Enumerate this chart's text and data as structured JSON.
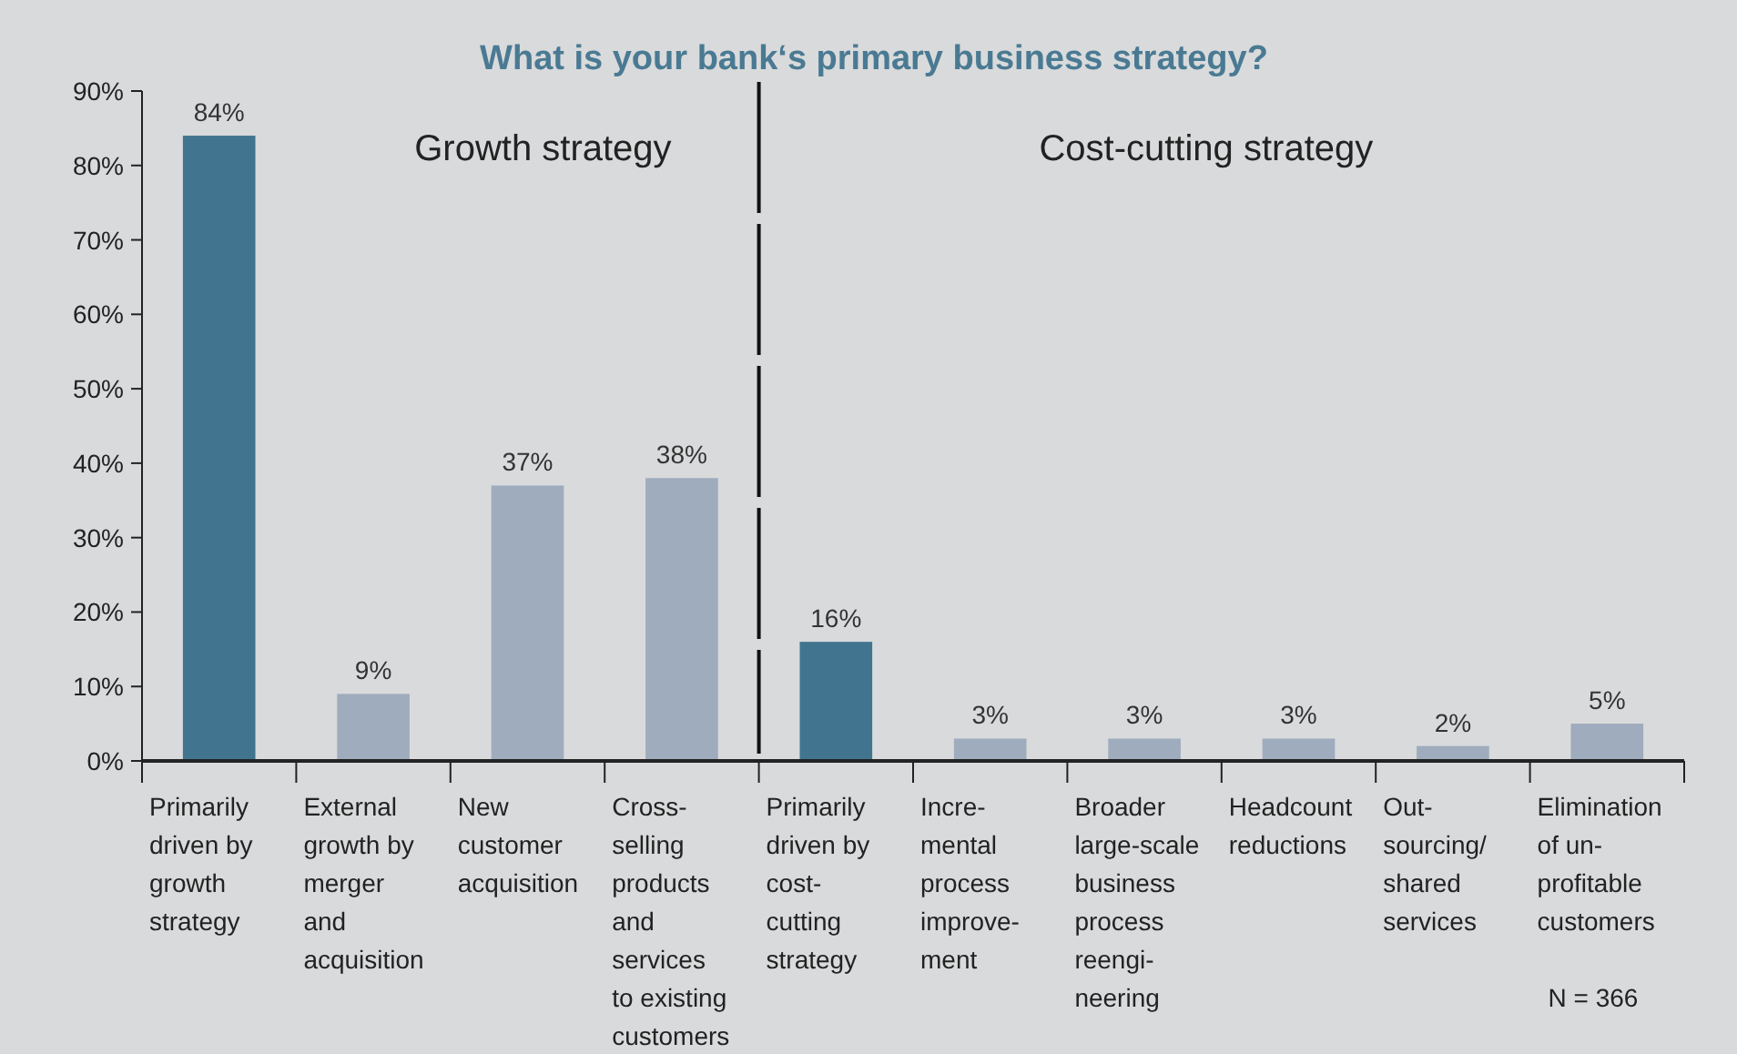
{
  "chart_data": {
    "type": "bar",
    "title": "What is your bank‘s primary business strategy?",
    "categories": [
      "Primarily\ndriven by\ngrowth\nstrategy",
      "External\ngrowth by\nmerger\nand\nacquisition",
      "New\ncustomer\nacquisition",
      "Cross-\nselling\nproducts\nand\nservices\nto existing\ncustomers",
      "Primarily\ndriven by\ncost-\ncutting\nstrategy",
      "Incre-\nmental\nprocess\nimprove-\nment",
      "Broader\nlarge-scale\nbusiness\nprocess\nreengi-\nneering",
      "Headcount\nreductions",
      "Out-\nsourcing/\nshared\nservices",
      "Elimination\nof un-\nprofitable\ncustomers"
    ],
    "values": [
      84,
      9,
      37,
      38,
      16,
      3,
      3,
      3,
      2,
      5
    ],
    "colors": [
      "#41748f",
      "#9eacbd",
      "#9eacbd",
      "#9eacbd",
      "#41748f",
      "#9eacbd",
      "#9eacbd",
      "#9eacbd",
      "#9eacbd",
      "#9eacbd"
    ],
    "value_labels": [
      "84%",
      "9%",
      "37%",
      "38%",
      "16%",
      "3%",
      "3%",
      "3%",
      "2%",
      "5%"
    ],
    "ylim": [
      0,
      90
    ],
    "yticks": [
      {
        "value": 0,
        "label": "0%"
      },
      {
        "value": 10,
        "label": "10%"
      },
      {
        "value": 20,
        "label": "20%"
      },
      {
        "value": 30,
        "label": "30%"
      },
      {
        "value": 40,
        "label": "40%"
      },
      {
        "value": 50,
        "label": "50%"
      },
      {
        "value": 60,
        "label": "60%"
      },
      {
        "value": 70,
        "label": "70%"
      },
      {
        "value": 80,
        "label": "80%"
      },
      {
        "value": 90,
        "label": "90%"
      }
    ],
    "annotations": [
      "Growth strategy",
      "Cost-cutting strategy",
      "N = 366"
    ]
  }
}
